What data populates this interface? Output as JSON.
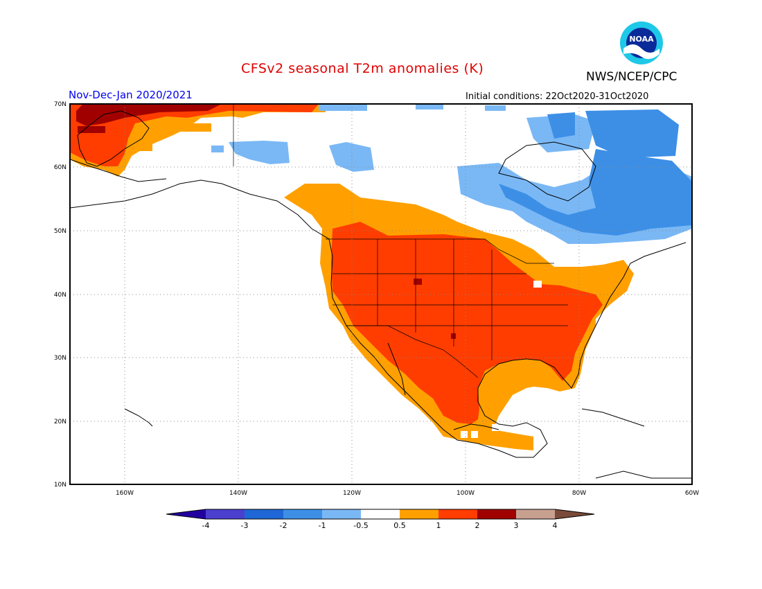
{
  "title": "CFSv2 seasonal T2m anomalies (K)",
  "organization": "NWS/NCEP/CPC",
  "logo_text": "NOAA",
  "period": "Nov-Dec-Jan 2020/2021",
  "initial_conditions": "Initial conditions: 22Oct2020-31Oct2020",
  "lat_labels": [
    "70N",
    "60N",
    "50N",
    "40N",
    "30N",
    "20N",
    "10N"
  ],
  "lon_labels": [
    "160W",
    "140W",
    "120W",
    "100W",
    "80W",
    "60W"
  ],
  "colorbar": {
    "ticks": [
      "-4",
      "-3",
      "-2",
      "-1",
      "-0.5",
      "0.5",
      "1",
      "2",
      "3",
      "4"
    ],
    "colors": [
      "#2200a0",
      "#4b3fd0",
      "#1f67d6",
      "#3d8fe6",
      "#7ab8f5",
      "#ffffff",
      "#ffa000",
      "#ff3d00",
      "#a00000",
      "#c8a090",
      "#7a4a3a"
    ]
  }
}
